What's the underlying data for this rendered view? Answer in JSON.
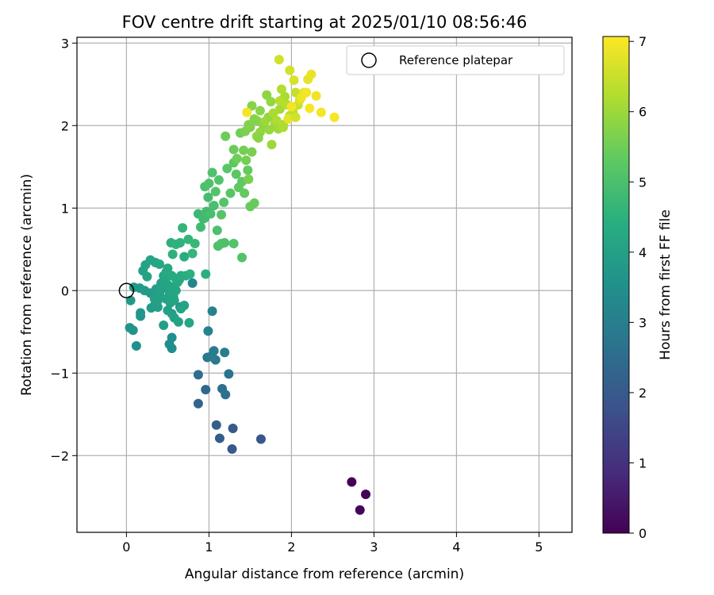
{
  "chart_data": {
    "type": "scatter",
    "title": "FOV centre drift starting at 2025/01/10 08:56:46",
    "xlabel": "Angular distance from reference (arcmin)",
    "ylabel": "Rotation from reference (arcmin)",
    "xlim": [
      -0.6,
      5.4
    ],
    "ylim": [
      -2.93,
      3.07
    ],
    "x_ticks": [
      "0",
      "1",
      "2",
      "3",
      "4",
      "5"
    ],
    "y_ticks": [
      "−2",
      "−1",
      "0",
      "1",
      "2",
      "3"
    ],
    "x_tick_values": [
      0,
      1,
      2,
      3,
      4,
      5
    ],
    "y_tick_values": [
      -2,
      -1,
      0,
      1,
      2,
      3
    ],
    "grid": true,
    "legend": {
      "placement": "top-right",
      "entries": [
        "Reference platepar"
      ]
    },
    "reference_point": {
      "x": 0,
      "y": 0,
      "marker": "open-circle"
    },
    "colorbar": {
      "label": "Hours from first FF file",
      "colormap": "viridis",
      "range": [
        0,
        7.07
      ],
      "ticks": [
        "0",
        "1",
        "2",
        "3",
        "4",
        "5",
        "6",
        "7"
      ],
      "tick_values": [
        0,
        1,
        2,
        3,
        4,
        5,
        6,
        7
      ]
    },
    "points": [
      [
        2.73,
        -2.32,
        0.05
      ],
      [
        2.9,
        -2.47,
        0.08
      ],
      [
        2.83,
        -2.66,
        0.1
      ],
      [
        1.63,
        -1.8,
        1.9
      ],
      [
        1.29,
        -1.67,
        1.95
      ],
      [
        1.28,
        -1.92,
        2.0
      ],
      [
        1.13,
        -1.79,
        2.05
      ],
      [
        1.09,
        -1.63,
        2.1
      ],
      [
        0.87,
        -1.37,
        2.3
      ],
      [
        0.96,
        -1.2,
        2.4
      ],
      [
        0.87,
        -1.02,
        2.5
      ],
      [
        1.16,
        -1.19,
        2.6
      ],
      [
        1.2,
        -1.26,
        2.65
      ],
      [
        1.24,
        -1.01,
        2.7
      ],
      [
        0.98,
        -0.81,
        2.8
      ],
      [
        1.08,
        -0.84,
        2.85
      ],
      [
        1.02,
        -0.8,
        2.9
      ],
      [
        1.06,
        -0.73,
        2.95
      ],
      [
        1.19,
        -0.75,
        3.0
      ],
      [
        0.99,
        -0.49,
        3.1
      ],
      [
        1.04,
        -0.25,
        3.15
      ],
      [
        0.8,
        0.09,
        3.2
      ],
      [
        0.65,
        -0.2,
        3.3
      ],
      [
        0.55,
        -0.7,
        3.4
      ],
      [
        0.52,
        -0.65,
        3.45
      ],
      [
        0.55,
        -0.57,
        3.5
      ],
      [
        0.12,
        -0.67,
        3.55
      ],
      [
        0.08,
        -0.48,
        3.6
      ],
      [
        0.04,
        -0.45,
        3.65
      ],
      [
        0.17,
        -0.27,
        3.7
      ],
      [
        0.17,
        -0.31,
        3.7
      ],
      [
        0.05,
        -0.12,
        3.75
      ],
      [
        0.09,
        0.04,
        3.8
      ],
      [
        0.16,
        0.03,
        3.8
      ],
      [
        0.22,
        0.0,
        3.85
      ],
      [
        0.29,
        -0.03,
        3.85
      ],
      [
        0.3,
        -0.21,
        3.9
      ],
      [
        0.34,
        -0.18,
        3.9
      ],
      [
        0.38,
        -0.2,
        3.95
      ],
      [
        0.45,
        -0.42,
        3.95
      ],
      [
        0.5,
        -0.24,
        4.0
      ],
      [
        0.55,
        -0.28,
        4.0
      ],
      [
        0.58,
        -0.33,
        4.05
      ],
      [
        0.63,
        -0.38,
        4.05
      ],
      [
        0.66,
        -0.22,
        4.1
      ],
      [
        0.7,
        -0.18,
        4.1
      ],
      [
        0.76,
        -0.39,
        4.15
      ],
      [
        0.36,
        0.02,
        4.0
      ],
      [
        0.4,
        -0.04,
        4.0
      ],
      [
        0.42,
        0.09,
        4.05
      ],
      [
        0.44,
        0.03,
        4.05
      ],
      [
        0.47,
        0.12,
        4.1
      ],
      [
        0.5,
        0.07,
        4.1
      ],
      [
        0.52,
        -0.02,
        4.1
      ],
      [
        0.55,
        0.04,
        4.15
      ],
      [
        0.57,
        -0.08,
        4.15
      ],
      [
        0.6,
        0.0,
        4.15
      ],
      [
        0.62,
        0.1,
        4.2
      ],
      [
        0.64,
        0.13,
        4.2
      ],
      [
        0.34,
        -0.1,
        4.0
      ],
      [
        0.38,
        -0.12,
        4.0
      ],
      [
        0.48,
        -0.1,
        4.05
      ],
      [
        0.53,
        -0.15,
        4.05
      ],
      [
        0.58,
        -0.12,
        4.1
      ],
      [
        0.2,
        0.24,
        4.05
      ],
      [
        0.23,
        0.31,
        4.1
      ],
      [
        0.25,
        0.17,
        4.1
      ],
      [
        0.29,
        0.37,
        4.15
      ],
      [
        0.35,
        0.34,
        4.15
      ],
      [
        0.4,
        0.32,
        4.2
      ],
      [
        0.45,
        0.18,
        4.2
      ],
      [
        0.5,
        0.27,
        4.25
      ],
      [
        0.48,
        0.22,
        4.25
      ],
      [
        0.55,
        0.18,
        4.3
      ],
      [
        0.6,
        0.14,
        4.3
      ],
      [
        0.66,
        0.18,
        4.35
      ],
      [
        0.7,
        0.41,
        4.4
      ],
      [
        0.72,
        0.18,
        4.4
      ],
      [
        0.77,
        0.2,
        4.45
      ],
      [
        0.96,
        0.2,
        4.45
      ],
      [
        0.54,
        0.58,
        4.5
      ],
      [
        0.56,
        0.44,
        4.5
      ],
      [
        0.6,
        0.56,
        4.55
      ],
      [
        0.65,
        0.58,
        4.55
      ],
      [
        0.68,
        0.76,
        4.6
      ],
      [
        0.75,
        0.62,
        4.65
      ],
      [
        0.8,
        0.45,
        4.65
      ],
      [
        0.83,
        0.57,
        4.7
      ],
      [
        0.87,
        0.93,
        4.75
      ],
      [
        0.9,
        0.77,
        4.8
      ],
      [
        0.93,
        0.87,
        4.8
      ],
      [
        0.95,
        0.88,
        4.85
      ],
      [
        0.97,
        0.96,
        4.85
      ],
      [
        0.99,
        1.13,
        4.9
      ],
      [
        1.02,
        0.93,
        4.95
      ],
      [
        1.06,
        1.03,
        4.95
      ],
      [
        1.1,
        0.73,
        5.0
      ],
      [
        1.11,
        0.54,
        5.0
      ],
      [
        1.15,
        0.57,
        5.05
      ],
      [
        1.19,
        0.58,
        5.05
      ],
      [
        1.3,
        0.57,
        5.1
      ],
      [
        1.4,
        0.4,
        5.1
      ],
      [
        0.95,
        1.26,
        5.0
      ],
      [
        1.0,
        1.3,
        5.05
      ],
      [
        1.04,
        1.43,
        5.05
      ],
      [
        1.08,
        1.2,
        5.1
      ],
      [
        1.12,
        1.34,
        5.1
      ],
      [
        1.15,
        0.92,
        5.15
      ],
      [
        1.18,
        1.07,
        5.15
      ],
      [
        1.22,
        1.48,
        5.2
      ],
      [
        1.26,
        1.18,
        5.2
      ],
      [
        1.3,
        1.55,
        5.25
      ],
      [
        1.33,
        1.41,
        5.25
      ],
      [
        1.36,
        1.25,
        5.3
      ],
      [
        1.4,
        1.32,
        5.3
      ],
      [
        1.43,
        1.18,
        5.35
      ],
      [
        1.47,
        1.46,
        5.35
      ],
      [
        1.5,
        1.02,
        5.4
      ],
      [
        1.55,
        1.06,
        5.4
      ],
      [
        1.2,
        1.87,
        5.45
      ],
      [
        1.3,
        1.71,
        5.45
      ],
      [
        1.34,
        1.6,
        5.5
      ],
      [
        1.38,
        1.91,
        5.5
      ],
      [
        1.42,
        1.7,
        5.55
      ],
      [
        1.45,
        1.58,
        5.55
      ],
      [
        1.48,
        1.35,
        5.6
      ],
      [
        1.52,
        1.68,
        5.6
      ],
      [
        1.44,
        1.93,
        5.65
      ],
      [
        1.5,
        1.98,
        5.65
      ],
      [
        1.55,
        2.08,
        5.7
      ],
      [
        1.48,
        2.01,
        5.7
      ],
      [
        1.52,
        2.24,
        5.75
      ],
      [
        1.58,
        2.06,
        5.75
      ],
      [
        1.62,
        2.18,
        5.8
      ],
      [
        1.66,
        2.0,
        5.85
      ],
      [
        1.7,
        2.37,
        5.85
      ],
      [
        1.72,
        2.1,
        5.9
      ],
      [
        1.75,
        2.29,
        5.9
      ],
      [
        1.58,
        1.87,
        5.85
      ],
      [
        1.62,
        1.92,
        5.9
      ],
      [
        1.76,
        1.77,
        6.0
      ],
      [
        1.8,
        2.02,
        6.0
      ],
      [
        1.84,
        1.96,
        6.05
      ],
      [
        1.86,
        2.2,
        6.1
      ],
      [
        1.9,
        2.01,
        6.1
      ],
      [
        1.92,
        2.35,
        6.15
      ],
      [
        1.78,
        2.15,
        6.15
      ],
      [
        1.82,
        2.06,
        6.2
      ],
      [
        1.88,
        2.44,
        6.25
      ],
      [
        1.95,
        2.25,
        6.3
      ],
      [
        1.98,
        2.12,
        6.35
      ],
      [
        2.02,
        2.16,
        6.4
      ],
      [
        2.05,
        2.4,
        6.45
      ],
      [
        2.08,
        2.25,
        6.5
      ],
      [
        1.85,
        2.8,
        6.55
      ],
      [
        1.98,
        2.67,
        6.6
      ],
      [
        2.03,
        2.55,
        6.65
      ],
      [
        2.1,
        2.31,
        6.7
      ],
      [
        2.15,
        2.4,
        6.75
      ],
      [
        2.2,
        2.56,
        6.8
      ],
      [
        2.24,
        2.62,
        6.85
      ],
      [
        2.3,
        2.36,
        6.9
      ],
      [
        2.36,
        2.16,
        6.95
      ],
      [
        2.52,
        2.1,
        7.0
      ],
      [
        2.12,
        2.34,
        6.9
      ],
      [
        2.18,
        2.4,
        6.95
      ],
      [
        1.46,
        2.16,
        6.95
      ],
      [
        2.22,
        2.21,
        7.0
      ],
      [
        2.0,
        2.23,
        6.95
      ],
      [
        1.96,
        2.08,
        6.8
      ],
      [
        2.05,
        2.1,
        6.6
      ],
      [
        1.68,
        2.05,
        6.0
      ],
      [
        1.73,
        1.95,
        5.95
      ],
      [
        1.6,
        1.85,
        5.8
      ],
      [
        1.9,
        1.98,
        6.2
      ],
      [
        1.86,
        2.3,
        6.3
      ]
    ]
  }
}
